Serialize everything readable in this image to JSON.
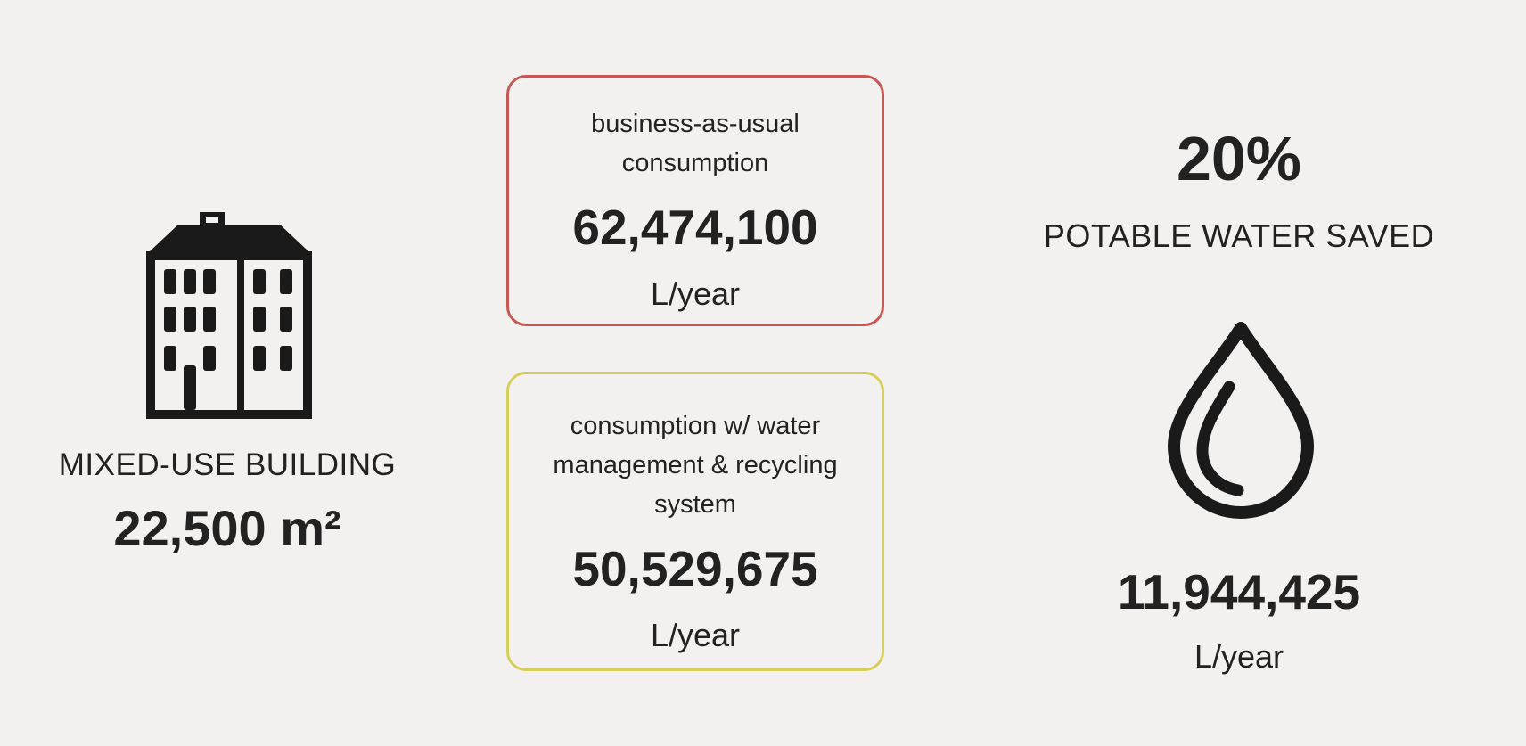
{
  "building": {
    "icon": "building-icon",
    "label": "MIXED-USE BUILDING",
    "area": "22,500 m²"
  },
  "cards": {
    "business_as_usual": {
      "caption": "business-as-usual consumption",
      "value": "62,474,100",
      "unit": "L/year",
      "border_color": "#c65a52"
    },
    "water_management": {
      "caption": "consumption w/ water management & recycling system",
      "value": "50,529,675",
      "unit": "L/year",
      "border_color": "#d7cf5c"
    }
  },
  "savings": {
    "percent": "20%",
    "label": "POTABLE WATER SAVED",
    "icon": "water-drop-icon",
    "value": "11,944,425",
    "unit": "L/year"
  },
  "colors": {
    "background": "#f2f1f0",
    "text": "#222222"
  }
}
